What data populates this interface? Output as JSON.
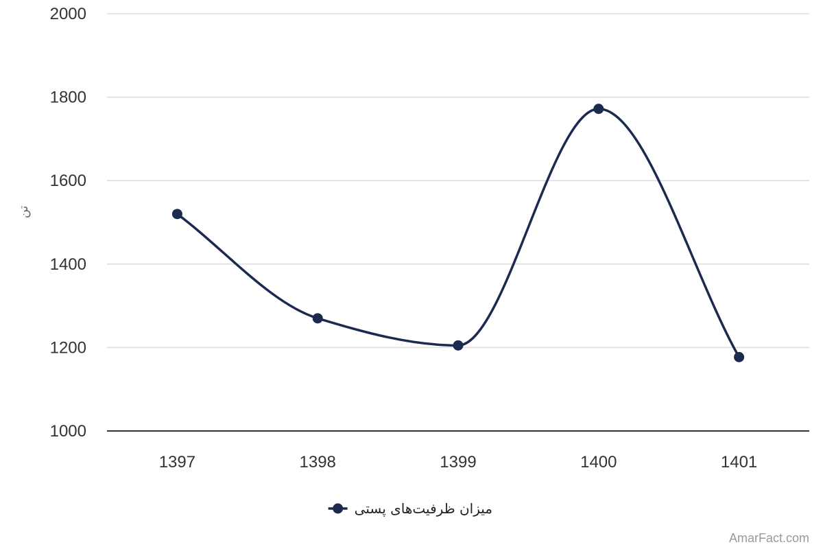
{
  "colors": {
    "series": "#1b2a4e",
    "grid": "#dddddd",
    "axis": "#333333",
    "tick_text": "#333333",
    "credit_text": "#999999"
  },
  "chart_data": {
    "type": "line",
    "smooth": true,
    "title": "",
    "xlabel": "",
    "ylabel": "تن",
    "categories": [
      "1397",
      "1398",
      "1399",
      "1400",
      "1401"
    ],
    "series": [
      {
        "name": "میزان ظرفیت‌های پستی",
        "values": [
          1520,
          1270,
          1205,
          1772,
          1177
        ],
        "color": "#1b2a4e",
        "marker": "circle"
      }
    ],
    "ylim": [
      1000,
      2000
    ],
    "yticks": [
      1000,
      1200,
      1400,
      1600,
      1800,
      2000
    ],
    "grid": true,
    "legend": "bottom-center"
  },
  "credit": "AmarFact.com"
}
